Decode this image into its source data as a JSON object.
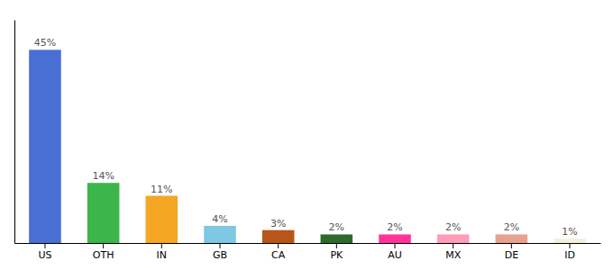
{
  "chart_data": {
    "type": "bar",
    "categories": [
      "US",
      "OTH",
      "IN",
      "GB",
      "CA",
      "PK",
      "AU",
      "MX",
      "DE",
      "ID"
    ],
    "values": [
      45,
      14,
      11,
      4,
      3,
      2,
      2,
      2,
      2,
      1
    ],
    "value_labels": [
      "45%",
      "14%",
      "11%",
      "4%",
      "3%",
      "2%",
      "2%",
      "2%",
      "2%",
      "1%"
    ],
    "colors": [
      "#4A6FD4",
      "#3CB54A",
      "#F5A623",
      "#7EC8E3",
      "#B8561A",
      "#2D6A2D",
      "#FF3399",
      "#FF9DB8",
      "#E8A090",
      "#F5F0DC"
    ],
    "ylim": [
      0,
      52
    ],
    "data_labels": true,
    "tick_labels": "x"
  }
}
